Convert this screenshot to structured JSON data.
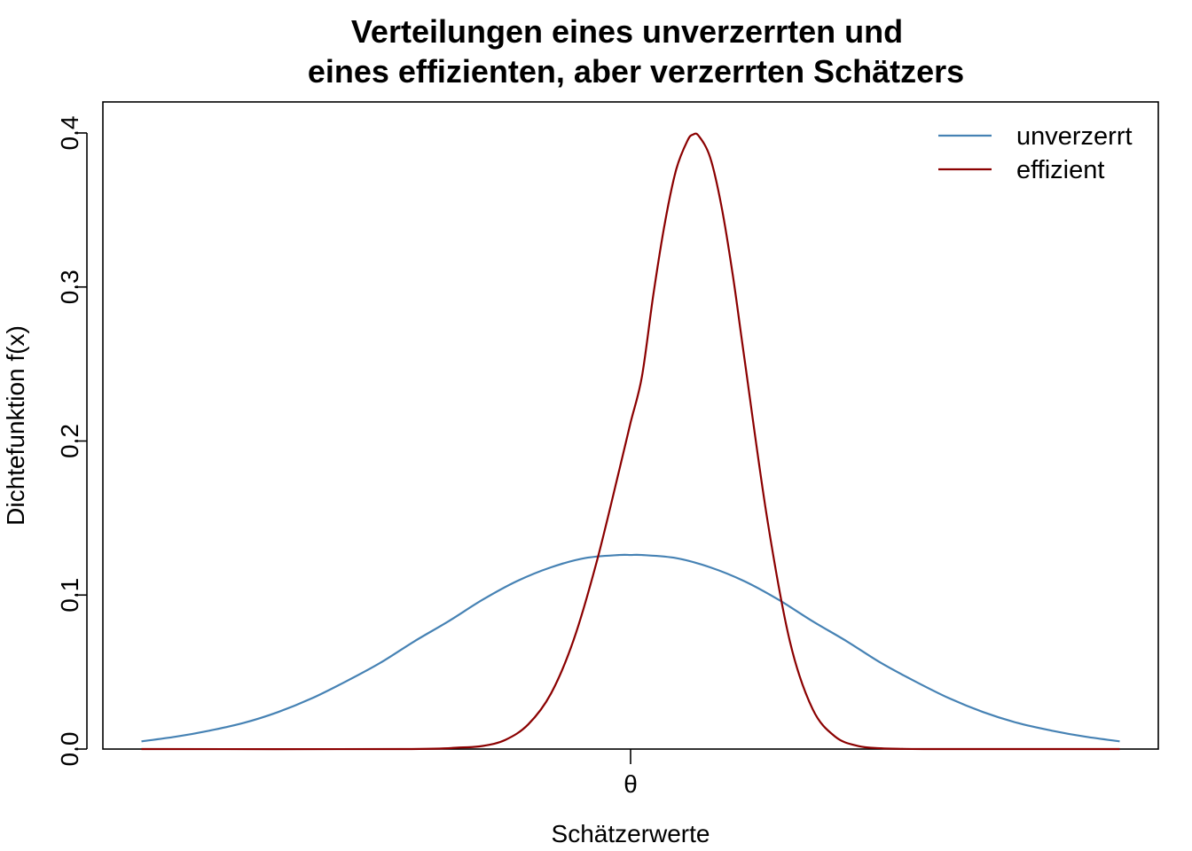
{
  "chart_data": {
    "type": "line",
    "title_lines": [
      "Verteilungen eines unverzerrten und",
      "eines effizienten, aber verzerrten Schätzers"
    ],
    "xlabel": "Schätzerwerte",
    "ylabel": "Dichtefunktion f(x)",
    "x_ticks": [
      {
        "value": 0,
        "label": "θ"
      }
    ],
    "y_ticks": [
      {
        "value": 0.0,
        "label": "0.0"
      },
      {
        "value": 0.1,
        "label": "0.1"
      },
      {
        "value": 0.2,
        "label": "0.2"
      },
      {
        "value": 0.3,
        "label": "0.3"
      },
      {
        "value": 0.4,
        "label": "0.4"
      }
    ],
    "xlim": [
      -4.6,
      4.6
    ],
    "ylim": [
      0.0,
      0.42
    ],
    "grid": false,
    "legend": {
      "position": "top-right"
    },
    "series": [
      {
        "name": "unverzerrt",
        "color": "#4682b4",
        "x": [
          -4.3,
          -4.0,
          -3.7,
          -3.4,
          -3.1,
          -2.8,
          -2.5,
          -2.2,
          -1.9,
          -1.6,
          -1.3,
          -1.0,
          -0.7,
          -0.4,
          -0.1,
          0.0,
          0.1,
          0.4,
          0.7,
          1.0,
          1.3,
          1.6,
          1.9,
          2.2,
          2.5,
          2.8,
          3.1,
          3.4,
          3.7,
          4.0,
          4.3
        ],
        "y": [
          0.005,
          0.008,
          0.012,
          0.017,
          0.024,
          0.033,
          0.044,
          0.056,
          0.07,
          0.083,
          0.097,
          0.109,
          0.118,
          0.124,
          0.126,
          0.126,
          0.126,
          0.124,
          0.118,
          0.109,
          0.097,
          0.083,
          0.07,
          0.056,
          0.044,
          0.033,
          0.024,
          0.017,
          0.012,
          0.008,
          0.005
        ]
      },
      {
        "name": "effizient",
        "color": "#8b0000",
        "x": [
          -4.3,
          -2.0,
          -1.5,
          -1.3,
          -1.1,
          -0.9,
          -0.7,
          -0.5,
          -0.3,
          -0.1,
          0.0,
          0.1,
          0.2,
          0.3,
          0.4,
          0.5,
          0.55,
          0.6,
          0.7,
          0.8,
          0.9,
          1.0,
          1.2,
          1.4,
          1.6,
          1.8,
          2.0,
          2.2,
          2.4,
          2.6,
          2.9,
          3.3,
          4.3
        ],
        "y": [
          0.0,
          0.0,
          0.001,
          0.002,
          0.006,
          0.016,
          0.036,
          0.071,
          0.121,
          0.181,
          0.212,
          0.242,
          0.295,
          0.341,
          0.376,
          0.395,
          0.399,
          0.398,
          0.384,
          0.352,
          0.307,
          0.254,
          0.15,
          0.07,
          0.026,
          0.008,
          0.002,
          0.0005,
          0.0001,
          0.0,
          0.0,
          0.0,
          0.0
        ]
      }
    ]
  }
}
